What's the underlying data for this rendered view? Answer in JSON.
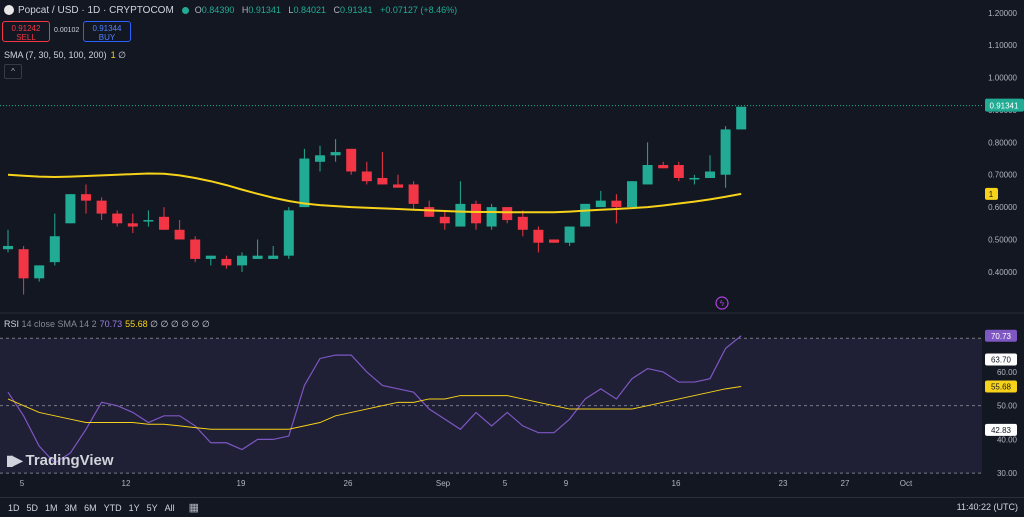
{
  "header": {
    "symbol": "Popcat / USD · 1D · CRYPTOCOM",
    "ohlc": [
      {
        "k": "O",
        "v": "0.84390"
      },
      {
        "k": "H",
        "v": "0.91341"
      },
      {
        "k": "L",
        "v": "0.84021"
      },
      {
        "k": "C",
        "v": "0.91341"
      },
      {
        "k": "",
        "v": "+0.07127 (+8.46%)"
      }
    ],
    "sell_price": "0.91242",
    "sell_label": "SELL",
    "spread": "0.00102",
    "buy_price": "0.91344",
    "buy_label": "BUY",
    "sma_legend": "SMA (7, 30, 50, 100, 200)",
    "sma_value": "1",
    "sma_rest": "∅",
    "collapse_icon": "chevron-up-icon"
  },
  "rsi_legend": {
    "name": "RSI",
    "params": "14 close SMA 14 2",
    "rsi_value": "70.73",
    "sma_value": "55.68",
    "rest": "∅ ∅ ∅ ∅ ∅ ∅"
  },
  "watermark": "TradingView",
  "bottom_bar": {
    "timeframes": [
      "1D",
      "5D",
      "1M",
      "3M",
      "6M",
      "YTD",
      "1Y",
      "5Y",
      "All"
    ],
    "clock": "11:40:22 (UTC)"
  },
  "colors": {
    "up": "#22ab94",
    "down": "#f23645",
    "sma": "#f7d21a",
    "rsi": "#7e57c2",
    "background": "#131722"
  },
  "chart_data": [
    {
      "type": "candlestick",
      "title": "Popcat / USD · 1D · CRYPTOCOM",
      "price_axis_ticks": [
        "1.20000",
        "1.10000",
        "1.00000",
        "0.90000",
        "0.80000",
        "0.70000",
        "0.60000",
        "0.50000",
        "0.40000"
      ],
      "ylim": [
        0.31,
        1.215
      ],
      "x_tick_labels": [
        "5",
        "12",
        "19",
        "26",
        "Sep",
        "5",
        "9",
        "16",
        "23",
        "27",
        "Oct"
      ],
      "last_price_label": "0.91341",
      "sma_price_label": "1",
      "ohlc": [
        {
          "o": 0.47,
          "h": 0.53,
          "l": 0.46,
          "c": 0.48
        },
        {
          "o": 0.47,
          "h": 0.48,
          "l": 0.33,
          "c": 0.38
        },
        {
          "o": 0.38,
          "h": 0.42,
          "l": 0.37,
          "c": 0.42
        },
        {
          "o": 0.43,
          "h": 0.58,
          "l": 0.42,
          "c": 0.51
        },
        {
          "o": 0.55,
          "h": 0.64,
          "l": 0.55,
          "c": 0.64
        },
        {
          "o": 0.64,
          "h": 0.67,
          "l": 0.58,
          "c": 0.62
        },
        {
          "o": 0.62,
          "h": 0.63,
          "l": 0.56,
          "c": 0.58
        },
        {
          "o": 0.58,
          "h": 0.59,
          "l": 0.54,
          "c": 0.55
        },
        {
          "o": 0.55,
          "h": 0.58,
          "l": 0.52,
          "c": 0.54
        },
        {
          "o": 0.56,
          "h": 0.59,
          "l": 0.54,
          "c": 0.56
        },
        {
          "o": 0.57,
          "h": 0.6,
          "l": 0.53,
          "c": 0.53
        },
        {
          "o": 0.53,
          "h": 0.56,
          "l": 0.5,
          "c": 0.5
        },
        {
          "o": 0.5,
          "h": 0.51,
          "l": 0.43,
          "c": 0.44
        },
        {
          "o": 0.44,
          "h": 0.45,
          "l": 0.42,
          "c": 0.45
        },
        {
          "o": 0.44,
          "h": 0.45,
          "l": 0.41,
          "c": 0.42
        },
        {
          "o": 0.42,
          "h": 0.46,
          "l": 0.4,
          "c": 0.45
        },
        {
          "o": 0.44,
          "h": 0.5,
          "l": 0.44,
          "c": 0.45
        },
        {
          "o": 0.44,
          "h": 0.48,
          "l": 0.44,
          "c": 0.45
        },
        {
          "o": 0.45,
          "h": 0.6,
          "l": 0.44,
          "c": 0.59
        },
        {
          "o": 0.6,
          "h": 0.78,
          "l": 0.6,
          "c": 0.75
        },
        {
          "o": 0.74,
          "h": 0.79,
          "l": 0.71,
          "c": 0.76
        },
        {
          "o": 0.76,
          "h": 0.81,
          "l": 0.74,
          "c": 0.77
        },
        {
          "o": 0.78,
          "h": 0.78,
          "l": 0.7,
          "c": 0.71
        },
        {
          "o": 0.71,
          "h": 0.74,
          "l": 0.67,
          "c": 0.68
        },
        {
          "o": 0.69,
          "h": 0.77,
          "l": 0.67,
          "c": 0.67
        },
        {
          "o": 0.67,
          "h": 0.7,
          "l": 0.66,
          "c": 0.66
        },
        {
          "o": 0.67,
          "h": 0.68,
          "l": 0.59,
          "c": 0.61
        },
        {
          "o": 0.6,
          "h": 0.62,
          "l": 0.57,
          "c": 0.57
        },
        {
          "o": 0.57,
          "h": 0.59,
          "l": 0.53,
          "c": 0.55
        },
        {
          "o": 0.54,
          "h": 0.68,
          "l": 0.54,
          "c": 0.61
        },
        {
          "o": 0.61,
          "h": 0.62,
          "l": 0.53,
          "c": 0.55
        },
        {
          "o": 0.54,
          "h": 0.61,
          "l": 0.53,
          "c": 0.6
        },
        {
          "o": 0.6,
          "h": 0.6,
          "l": 0.55,
          "c": 0.56
        },
        {
          "o": 0.57,
          "h": 0.59,
          "l": 0.51,
          "c": 0.53
        },
        {
          "o": 0.53,
          "h": 0.54,
          "l": 0.46,
          "c": 0.49
        },
        {
          "o": 0.5,
          "h": 0.5,
          "l": 0.49,
          "c": 0.49
        },
        {
          "o": 0.49,
          "h": 0.54,
          "l": 0.48,
          "c": 0.54
        },
        {
          "o": 0.54,
          "h": 0.61,
          "l": 0.54,
          "c": 0.61
        },
        {
          "o": 0.6,
          "h": 0.65,
          "l": 0.6,
          "c": 0.62
        },
        {
          "o": 0.62,
          "h": 0.64,
          "l": 0.55,
          "c": 0.6
        },
        {
          "o": 0.6,
          "h": 0.68,
          "l": 0.6,
          "c": 0.68
        },
        {
          "o": 0.67,
          "h": 0.8,
          "l": 0.67,
          "c": 0.73
        },
        {
          "o": 0.73,
          "h": 0.74,
          "l": 0.72,
          "c": 0.72
        },
        {
          "o": 0.73,
          "h": 0.74,
          "l": 0.68,
          "c": 0.69
        },
        {
          "o": 0.69,
          "h": 0.7,
          "l": 0.67,
          "c": 0.69
        },
        {
          "o": 0.69,
          "h": 0.76,
          "l": 0.69,
          "c": 0.71
        },
        {
          "o": 0.7,
          "h": 0.85,
          "l": 0.66,
          "c": 0.84
        },
        {
          "o": 0.84,
          "h": 0.91,
          "l": 0.84,
          "c": 0.91
        }
      ],
      "sma": [
        0.7,
        0.697,
        0.694,
        0.693,
        0.694,
        0.696,
        0.698,
        0.7,
        0.702,
        0.704,
        0.703,
        0.698,
        0.69,
        0.68,
        0.668,
        0.654,
        0.641,
        0.629,
        0.619,
        0.611,
        0.606,
        0.603,
        0.6,
        0.598,
        0.596,
        0.594,
        0.592,
        0.59,
        0.588,
        0.586,
        0.585,
        0.585,
        0.584,
        0.584,
        0.584,
        0.584,
        0.586,
        0.589,
        0.592,
        0.594,
        0.597,
        0.6,
        0.605,
        0.611,
        0.617,
        0.624,
        0.632,
        0.641
      ]
    },
    {
      "type": "line",
      "title": "RSI 14 close SMA 14 2",
      "ylim": [
        25,
        76
      ],
      "y_tick_labels": [
        "70.00",
        "60.00",
        "50.00",
        "40.00",
        "30.00"
      ],
      "value_labels": [
        "70.73",
        "63.70",
        "55.68",
        "42.83"
      ],
      "levels": [
        70,
        50,
        30
      ],
      "series": [
        {
          "name": "RSI",
          "values": [
            54,
            47,
            38,
            33,
            36,
            43,
            51,
            50,
            48,
            45,
            47,
            47,
            44,
            39,
            39,
            37,
            40,
            40,
            41,
            56,
            64,
            65,
            65,
            60,
            56,
            55,
            54,
            49,
            46,
            43,
            48,
            44,
            48,
            44,
            42,
            42,
            46,
            52,
            55,
            52,
            58,
            61,
            60,
            57,
            57,
            58,
            67,
            70.73
          ]
        },
        {
          "name": "SMA",
          "values": [
            52,
            50,
            48,
            47,
            46,
            45,
            45,
            45,
            45,
            44.5,
            44.5,
            44,
            43.5,
            43,
            43,
            43,
            43,
            43,
            43,
            44,
            45,
            47,
            48,
            49,
            50,
            51,
            51,
            52,
            52,
            53,
            53,
            53,
            53,
            52,
            51,
            50,
            49,
            49,
            49,
            49,
            49,
            50,
            51,
            52,
            53,
            54,
            55,
            55.68
          ]
        }
      ]
    }
  ]
}
